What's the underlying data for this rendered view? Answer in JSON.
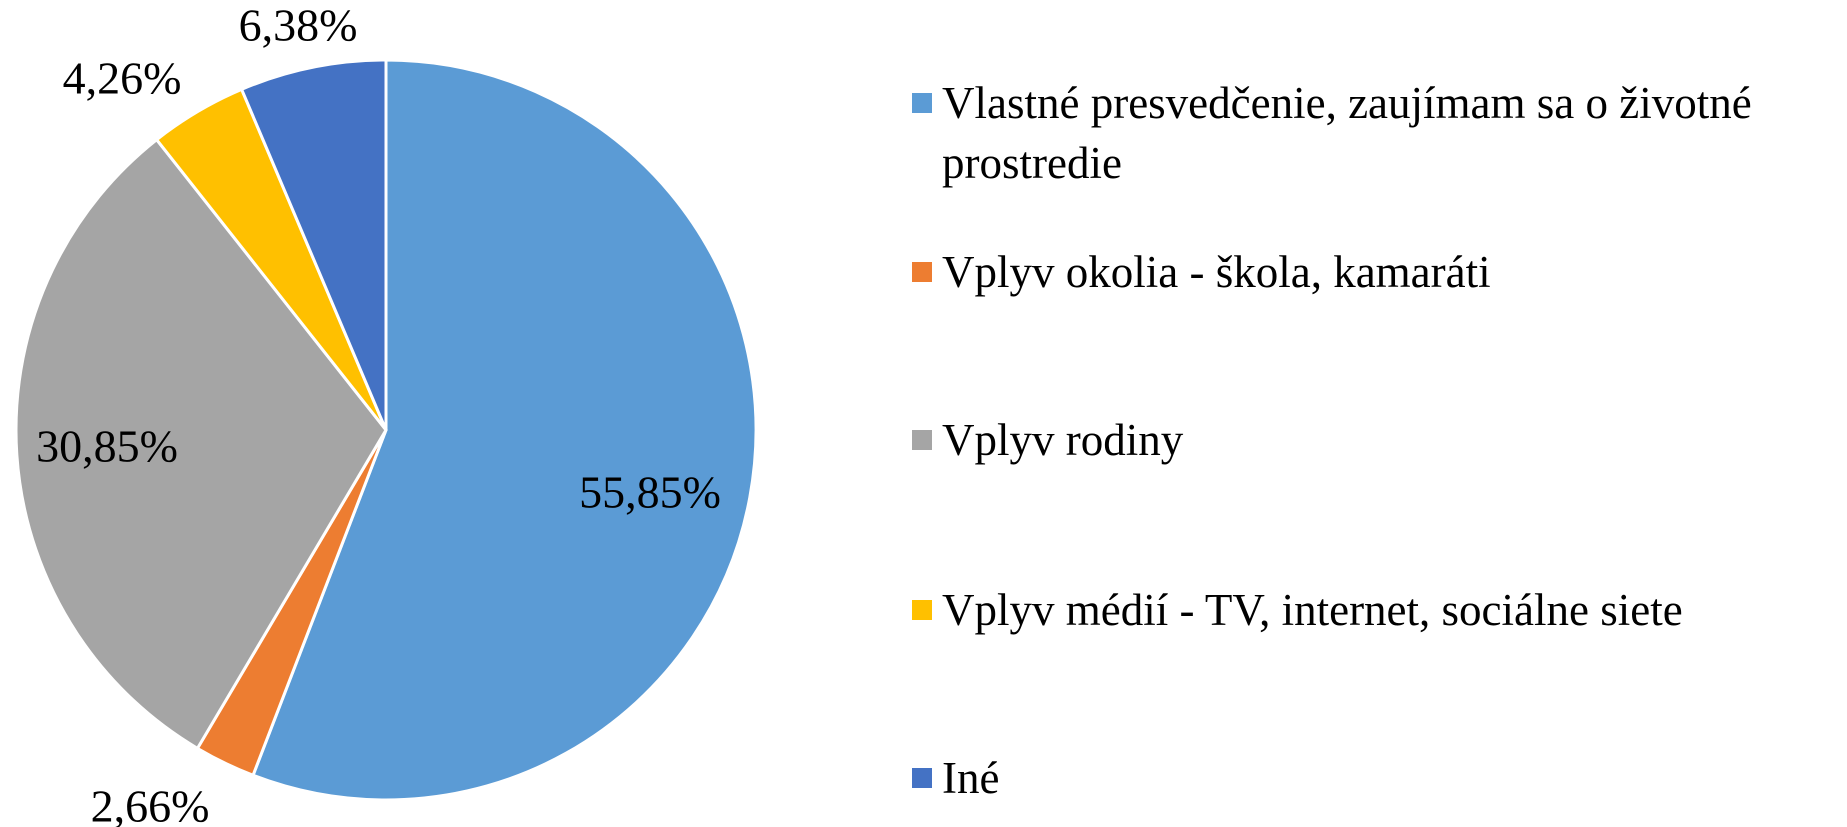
{
  "chart_data": {
    "type": "pie",
    "categories": [
      "Vlastné presvedčenie, zaujímam sa o životné prostredie",
      "Vplyv okolia - škola, kamaráti",
      "Vplyv rodiny",
      "Vplyv médií - TV, internet, sociálne siete",
      "Iné"
    ],
    "values": [
      55.85,
      2.66,
      30.85,
      4.26,
      6.38
    ],
    "value_labels": [
      "55,85%",
      "2,66%",
      "30,85%",
      "4,26%",
      "6,38%"
    ],
    "colors": [
      "#5b9bd5",
      "#ed7d31",
      "#a5a5a5",
      "#ffc000",
      "#4472c4"
    ],
    "legend": "right"
  }
}
